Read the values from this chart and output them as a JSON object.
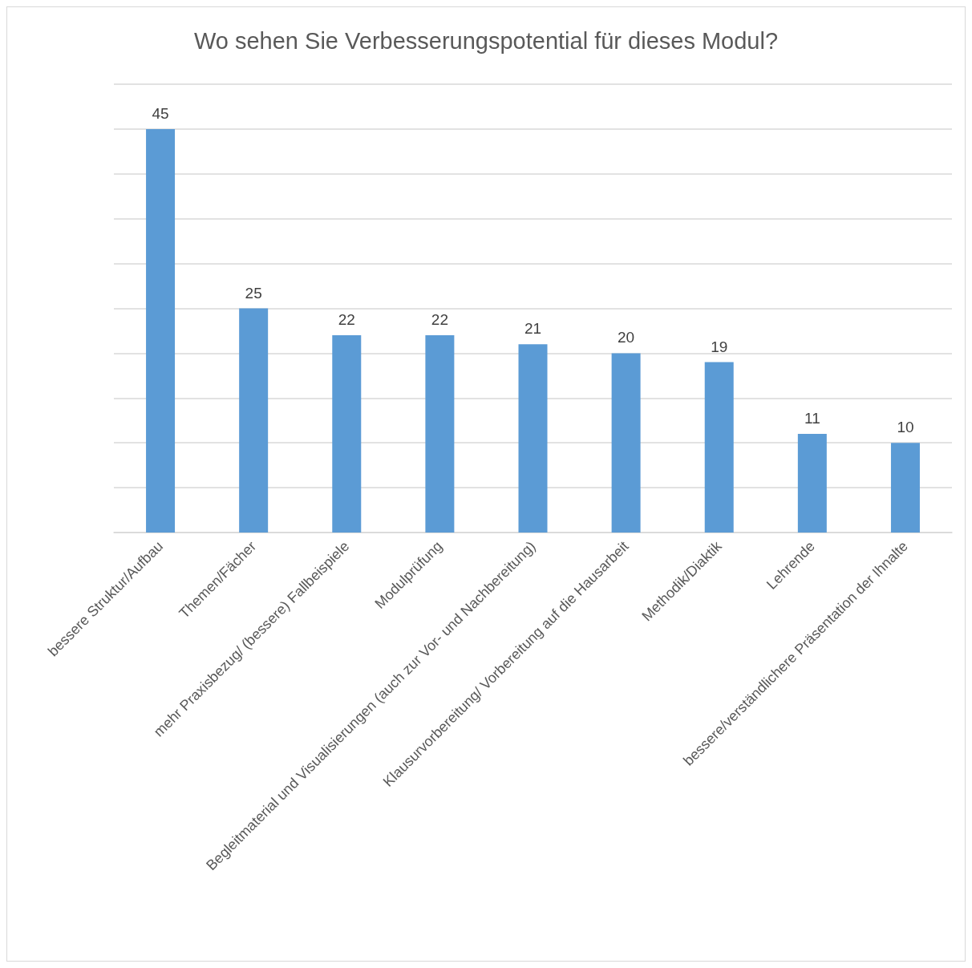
{
  "chart_data": {
    "type": "bar",
    "title": "Wo sehen Sie Verbesserungspotential für dieses Modul?",
    "categories": [
      "bessere Struktur/Aufbau",
      "Themen/Fächer",
      "mehr Praxisbezug/ (bessere) Fallbeispiele",
      "Modulprüfung",
      "Begleitmaterial und Visualisierungen (auch zur Vor- und Nachbereitung)",
      "Klausurvorbereitung/ Vorbereitung auf die Hausarbeit",
      "Methodik/Diaktik",
      "Lehrende",
      "bessere/verständlichere Präsentation der Ihnalte"
    ],
    "values": [
      45,
      25,
      22,
      22,
      21,
      20,
      19,
      11,
      10
    ],
    "color": "#5b9bd5",
    "ylim": [
      0,
      50
    ],
    "yticks": [
      {
        "value": 0,
        "label": null
      },
      {
        "value": 5,
        "label": null
      },
      {
        "value": 10,
        "label": null
      },
      {
        "value": 15,
        "label": null
      },
      {
        "value": 20,
        "label": null
      },
      {
        "value": 25,
        "label": null
      },
      {
        "value": 30,
        "label": null
      },
      {
        "value": 35,
        "label": null
      },
      {
        "value": 40,
        "label": null
      },
      {
        "value": 45,
        "label": null
      },
      {
        "value": 50,
        "label": null
      }
    ],
    "grid": "y",
    "tick_labels": "x",
    "data_labels": true
  }
}
